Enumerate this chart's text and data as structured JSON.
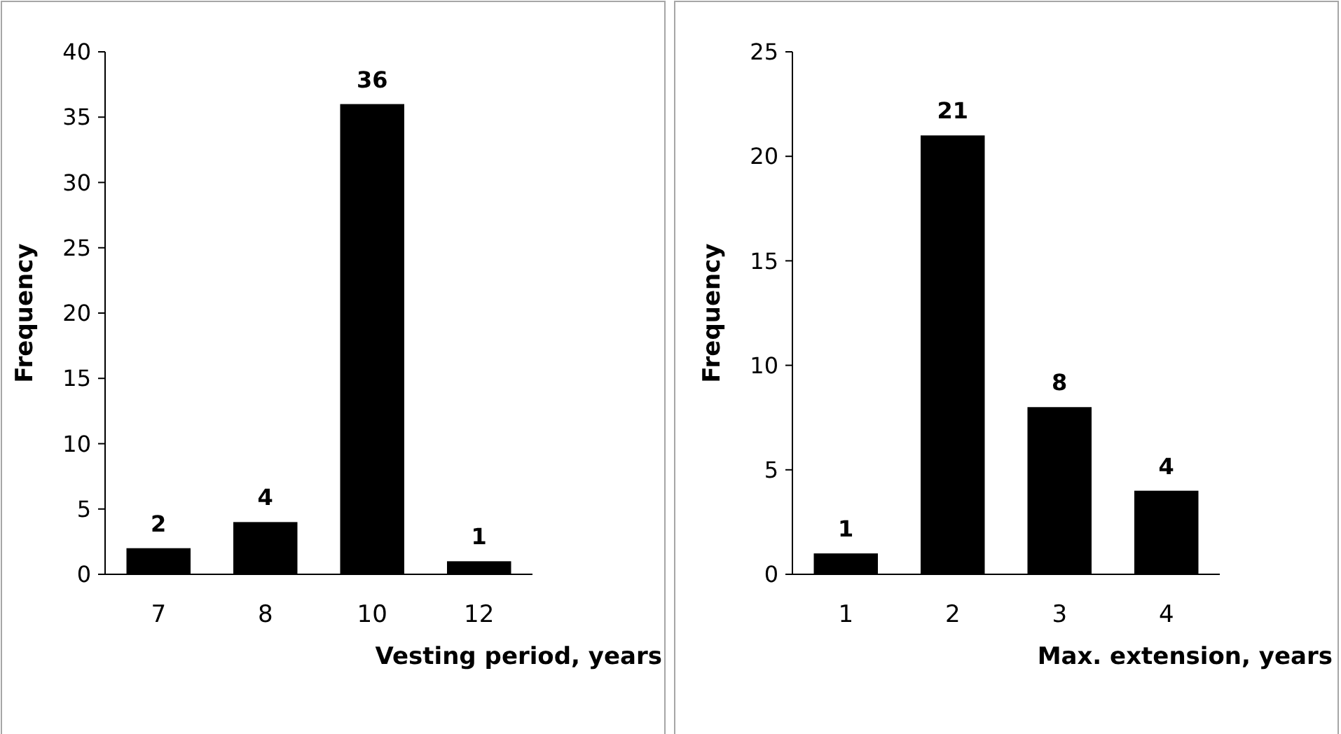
{
  "chart_data": [
    {
      "type": "bar",
      "categories": [
        "7",
        "8",
        "10",
        "12"
      ],
      "values": [
        2,
        4,
        36,
        1
      ],
      "color": "#000000",
      "ylim": [
        0,
        40
      ],
      "yticks": [
        0,
        5,
        10,
        15,
        20,
        25,
        30,
        35,
        40
      ],
      "xlabel": "Vesting period, years",
      "ylabel": "Frequency",
      "data_labels": true
    },
    {
      "type": "bar",
      "categories": [
        "1",
        "2",
        "3",
        "4"
      ],
      "values": [
        1,
        21,
        8,
        4
      ],
      "color": "#000000",
      "ylim": [
        0,
        25
      ],
      "yticks": [
        0,
        5,
        10,
        15,
        20,
        25
      ],
      "xlabel": "Max. extension, years",
      "ylabel": "Frequency",
      "data_labels": true
    }
  ]
}
